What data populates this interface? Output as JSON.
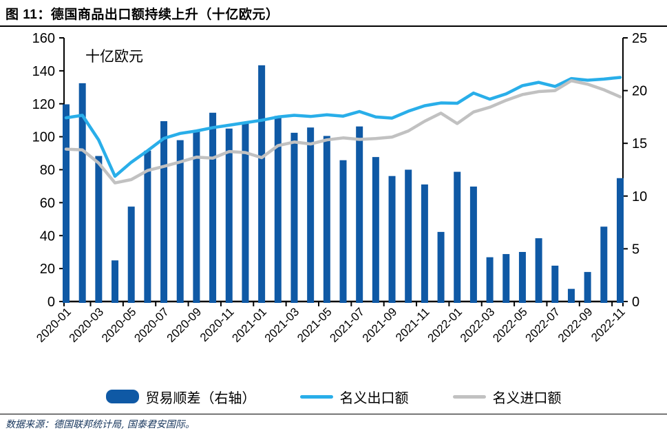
{
  "header": {
    "title": "图 11：德国商品出口额持续上升（十亿欧元）"
  },
  "annotation": {
    "unit_label": "十亿欧元"
  },
  "legend": [
    {
      "label": "贸易顺差（右轴）",
      "swatch": "bar",
      "color": "#0F59A5"
    },
    {
      "label": "名义出口额",
      "swatch": "line",
      "color": "#29AEE9"
    },
    {
      "label": "名义进口额",
      "swatch": "line",
      "color": "#C1C1C1"
    }
  ],
  "source": {
    "text": "数据来源：德国联邦统计局, 国泰君安国际。"
  },
  "colors": {
    "bar": "#0F59A5",
    "exports_line": "#29AEE9",
    "imports_line": "#C1C1C1",
    "axis": "#000000",
    "source_text": "#17365D"
  },
  "chart_data": {
    "type": "bar",
    "subtype": "combo dual-axis: monthly bars (right axis) + two lines (left axis)",
    "title": "图 11：德国商品出口额持续上升（十亿欧元）",
    "unit_note": "十亿欧元",
    "grid": false,
    "legend_position": "bottom",
    "x": [
      "2020-01",
      "2020-02",
      "2020-03",
      "2020-04",
      "2020-05",
      "2020-06",
      "2020-07",
      "2020-08",
      "2020-09",
      "2020-10",
      "2020-11",
      "2020-12",
      "2021-01",
      "2021-02",
      "2021-03",
      "2021-04",
      "2021-05",
      "2021-06",
      "2021-07",
      "2021-08",
      "2021-09",
      "2021-10",
      "2021-11",
      "2021-12",
      "2022-01",
      "2022-02",
      "2022-03",
      "2022-04",
      "2022-05",
      "2022-06",
      "2022-07",
      "2022-08",
      "2022-09",
      "2022-10",
      "2022-11"
    ],
    "x_tick_labels": [
      "2020-01",
      "2020-03",
      "2020-05",
      "2020-07",
      "2020-09",
      "2020-11",
      "2021-01",
      "2021-03",
      "2021-05",
      "2021-07",
      "2021-09",
      "2021-11",
      "2022-01",
      "2022-03",
      "2022-05",
      "2022-07",
      "2022-09",
      "2022-11"
    ],
    "left_axis": {
      "min": 0,
      "max": 160,
      "step": 20
    },
    "right_axis": {
      "min": 0,
      "max": 25,
      "step": 5
    },
    "series": [
      {
        "name": "贸易顺差（右轴）",
        "kind": "bar",
        "axis": "right",
        "color": "#0F59A5",
        "values": [
          18.7,
          20.7,
          13.8,
          3.9,
          9.0,
          14.3,
          17.1,
          15.3,
          16.2,
          17.9,
          16.4,
          16.9,
          22.4,
          17.6,
          16.0,
          16.5,
          15.7,
          13.4,
          16.6,
          13.7,
          11.9,
          12.5,
          11.1,
          6.6,
          12.3,
          10.9,
          4.2,
          4.5,
          4.7,
          6.0,
          3.4,
          1.2,
          2.8,
          7.1,
          11.7
        ]
      },
      {
        "name": "名义出口额",
        "kind": "line",
        "axis": "left",
        "color": "#29AEE9",
        "values": [
          111.5,
          113,
          98,
          76,
          84.5,
          91.5,
          99,
          102,
          103.5,
          105.5,
          107,
          108.5,
          110,
          112,
          113,
          112.3,
          113.3,
          112.5,
          115.3,
          112,
          111.3,
          115.5,
          118.8,
          120.5,
          120.3,
          126.5,
          122.8,
          126,
          131,
          133,
          130.5,
          135.3,
          134.3,
          135,
          136
        ]
      },
      {
        "name": "名义进口额",
        "kind": "line",
        "axis": "left",
        "color": "#C1C1C1",
        "values": [
          92.5,
          92,
          84,
          72,
          74,
          79.5,
          82,
          84.7,
          87.6,
          87,
          91,
          90.4,
          87.3,
          94.6,
          96.8,
          95.6,
          98.1,
          99.3,
          98.4,
          98.9,
          99.8,
          103.5,
          109.4,
          114.3,
          108,
          115,
          117.9,
          122.1,
          125.6,
          127.4,
          128,
          134,
          131.9,
          128.5,
          124.2
        ]
      }
    ]
  }
}
